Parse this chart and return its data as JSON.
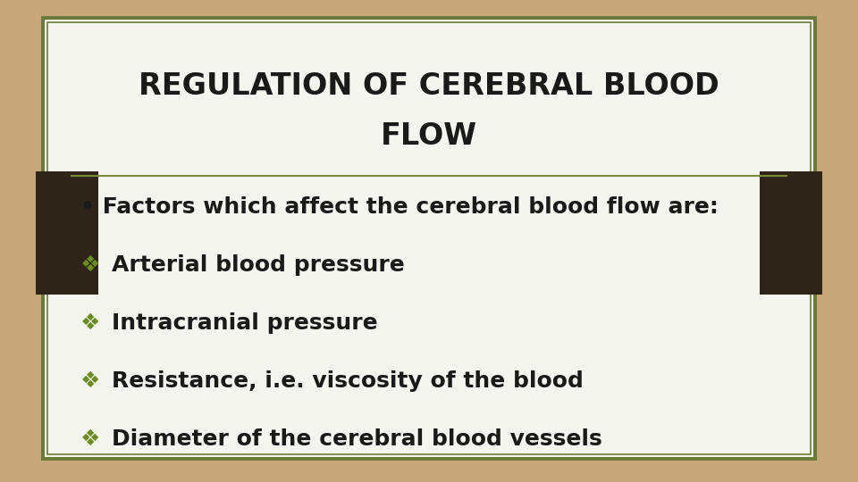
{
  "title_line1": "REGULATION OF CEREBRAL BLOOD",
  "title_line2": "FLOW",
  "bullet_intro": "• Factors which affect the cerebral blood flow are:",
  "bullet_items": [
    "Arterial blood pressure",
    "Intracranial pressure",
    "Resistance, i.e. viscosity of the blood",
    "Diameter of the cerebral blood vessels"
  ],
  "bg_color": "#c8a87a",
  "slide_bg": "#f5f5f0",
  "border_color_outer": "#6b7c3a",
  "title_color": "#1a1a1a",
  "text_color": "#1a1a1a",
  "divider_color": "#7a8a3a",
  "diamond_color": "#6b8c20",
  "dark_band_color": "#2e2418",
  "title_fontsize": 24,
  "body_fontsize": 18,
  "intro_fontsize": 18
}
